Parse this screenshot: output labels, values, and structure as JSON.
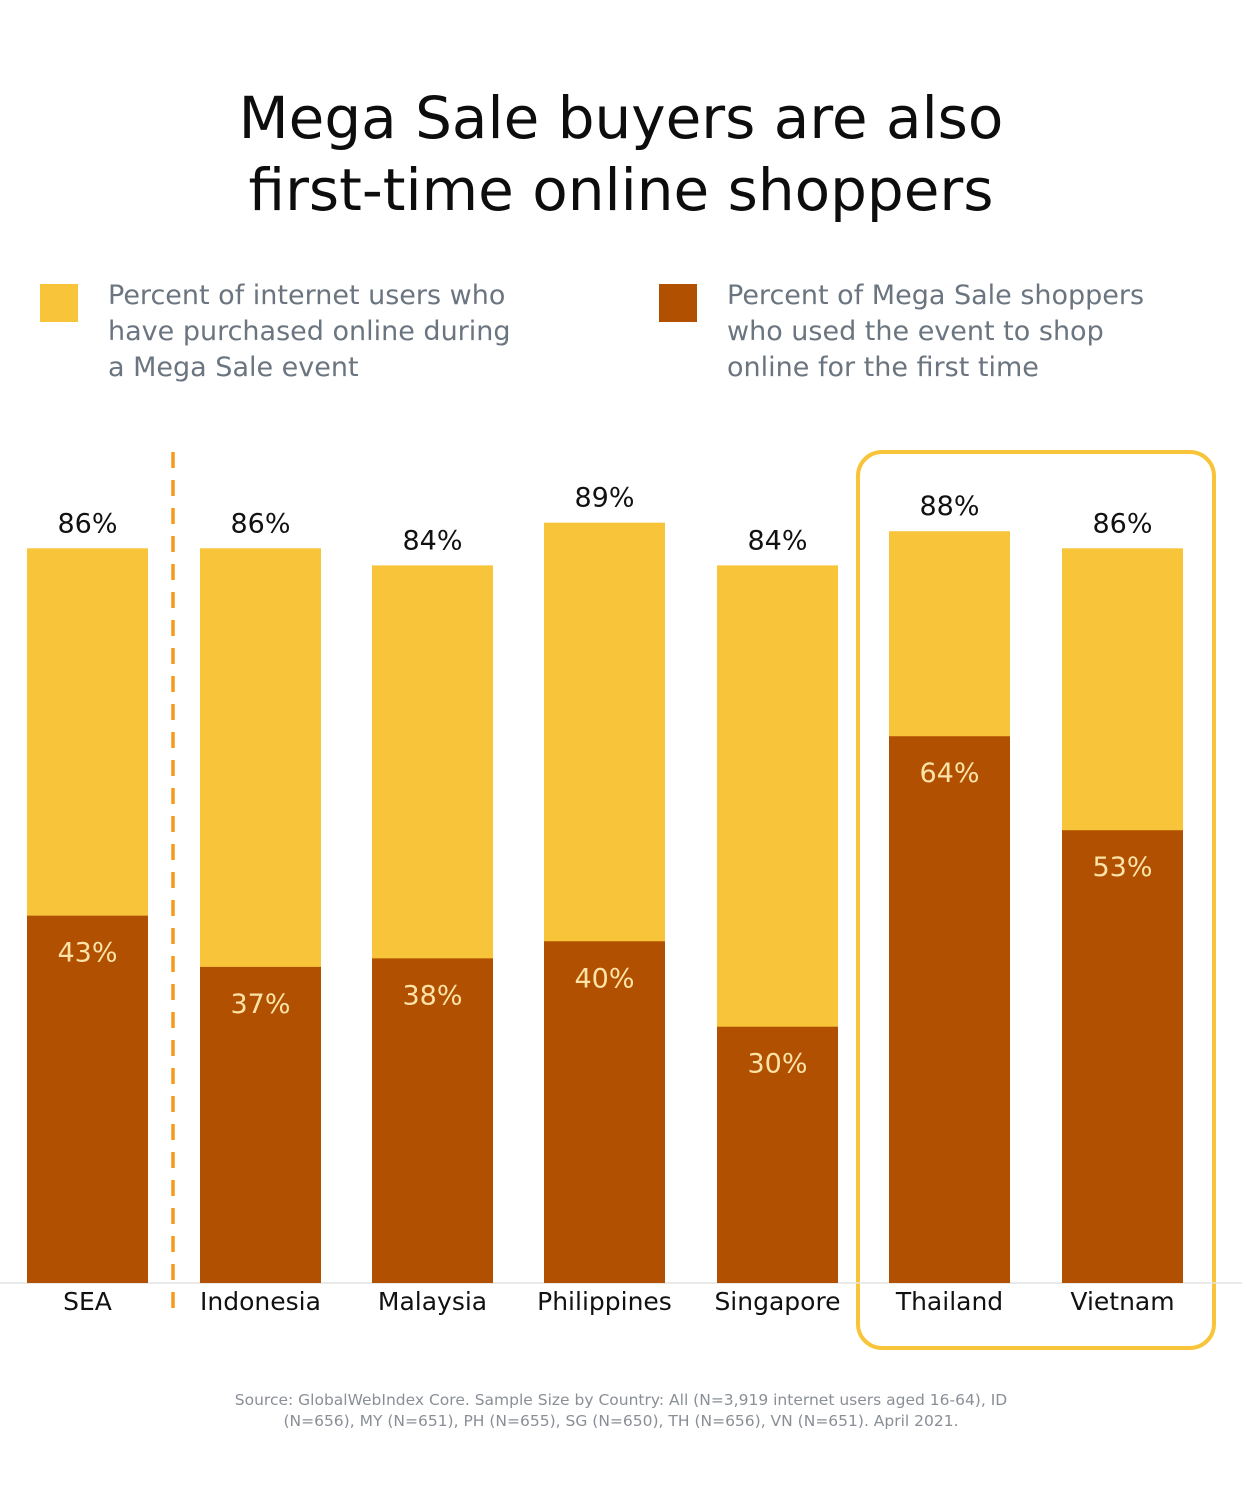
{
  "title_line1": "Mega Sale buyers are also",
  "title_line2": "first-time online shoppers",
  "legend": [
    {
      "lines": [
        "Percent of internet users who",
        "have purchased online during",
        "a Mega Sale event"
      ],
      "color": "#F8C53A"
    },
    {
      "lines": [
        "Percent of Mega Sale shoppers",
        "who used the event to shop",
        "online for the first time"
      ],
      "color": "#B05000"
    }
  ],
  "source_line1": "Source: GlobalWebIndex Core. Sample Size by Country: All (N=3,919 internet users aged 16-64), ID",
  "source_line2": "(N=656), MY (N=651), PH (N=655), SG (N=650), TH (N=656), VN (N=651). April 2021.",
  "colors": {
    "highlight": "#F8C53A",
    "divider": "#F29A1F",
    "axis": "#e4e4e4",
    "inner_label": "#FDE3A7"
  },
  "chart_data": {
    "type": "bar",
    "categories": [
      "SEA",
      "Indonesia",
      "Malaysia",
      "Philippines",
      "Singapore",
      "Thailand",
      "Vietnam"
    ],
    "series": [
      {
        "name": "Percent of internet users who have purchased online during a Mega Sale event",
        "values": [
          86,
          86,
          84,
          89,
          84,
          88,
          86
        ],
        "labels": [
          "86%",
          "86%",
          "84%",
          "89%",
          "84%",
          "88%",
          "86%"
        ],
        "color": "#F8C53A"
      },
      {
        "name": "Percent of Mega Sale shoppers who used the event to shop online for the first time",
        "values": [
          43,
          37,
          38,
          40,
          30,
          64,
          53
        ],
        "labels": [
          "43%",
          "37%",
          "38%",
          "40%",
          "30%",
          "64%",
          "53%"
        ],
        "color": "#B05000"
      }
    ],
    "highlighted_categories": [
      "Thailand",
      "Vietnam"
    ],
    "ylim": [
      0,
      100
    ],
    "grid": false,
    "legend_position": "top"
  }
}
